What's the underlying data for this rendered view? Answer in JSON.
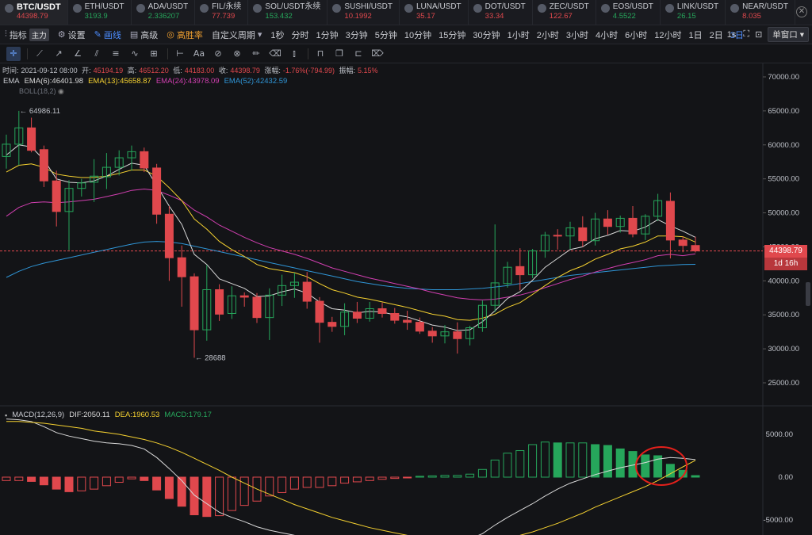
{
  "tickers": [
    {
      "symbol": "BTC/USDT",
      "price": "44398.79",
      "dir": "dn",
      "active": true
    },
    {
      "symbol": "ETH/USDT",
      "price": "3193.9",
      "dir": "up"
    },
    {
      "symbol": "ADA/USDT",
      "price": "2.336207",
      "dir": "up"
    },
    {
      "symbol": "FIL/永续",
      "price": "77.739",
      "dir": "dn"
    },
    {
      "symbol": "SOL/USDT永续",
      "price": "153.432",
      "dir": "up"
    },
    {
      "symbol": "SUSHI/USDT",
      "price": "10.1992",
      "dir": "dn"
    },
    {
      "symbol": "LUNA/USDT",
      "price": "35.17",
      "dir": "dn"
    },
    {
      "symbol": "DOT/USDT",
      "price": "33.34",
      "dir": "dn"
    },
    {
      "symbol": "ZEC/USDT",
      "price": "122.67",
      "dir": "dn"
    },
    {
      "symbol": "EOS/USDT",
      "price": "4.5522",
      "dir": "up"
    },
    {
      "symbol": "LINK/USDT",
      "price": "26.15",
      "dir": "up"
    },
    {
      "symbol": "NEAR/USDT",
      "price": "8.035",
      "dir": "dn"
    }
  ],
  "menu": {
    "indicators": "指标",
    "main_badge": "主力",
    "settings": "设置",
    "draw": "画线",
    "advanced": "高级",
    "winrate": "高胜率",
    "custom_period": "自定义周期",
    "intervals": [
      "1秒",
      "分时",
      "1分钟",
      "3分钟",
      "5分钟",
      "10分钟",
      "15分钟",
      "30分钟",
      "1小时",
      "2小时",
      "3小时",
      "4小时",
      "6小时",
      "12小时",
      "1日",
      "2日",
      "3日"
    ],
    "selected_interval": "3日",
    "right_interval": "1s",
    "single_window": "单窗口"
  },
  "tool_icons": [
    "crosshair-icon",
    "trendline-icon",
    "ray-icon",
    "angle-icon",
    "channel-icon",
    "parallel-icon",
    "wave-icon",
    "add-box-icon",
    "ruler-icon",
    "text-icon",
    "magnet-icon",
    "lock-draw-icon",
    "brush-icon",
    "eraser-icon",
    "candle-type-icon",
    "lock-icon",
    "copy-icon",
    "cut-icon",
    "trash-icon"
  ],
  "ohlc": {
    "time_label": "时间:",
    "time": "2021-09-12 08:00",
    "open_label": "开:",
    "open": "45194.19",
    "high_label": "高:",
    "high": "46512.20",
    "low_label": "低:",
    "low": "44183.00",
    "close_label": "收:",
    "close": "44398.79",
    "change_label": "涨幅:",
    "change": "-1.76%(-794.99)",
    "amp_label": "振幅:",
    "amp": "5.15%"
  },
  "ema": {
    "name": "EMA",
    "ema6": "EMA(6):46401.98",
    "ema13": "EMA(13):45658.87",
    "ema24": "EMA(24):43978.09",
    "ema52": "EMA(52):42432.59",
    "boll": "BOLL(18,2)"
  },
  "macd": {
    "name": "MACD(12,26,9)",
    "dif": "DIF:2050.11",
    "dea": "DEA:1960.53",
    "macd": "MACD:179.17"
  },
  "colors": {
    "up": "#26a65b",
    "down": "#e0484d",
    "ema6": "#d9d9d9",
    "ema13": "#f5d130",
    "ema24": "#d13fb0",
    "ema52": "#2f95d6",
    "dif": "#d9d9d9",
    "dea": "#f5d130"
  },
  "price_axis": {
    "ticks": [
      "70000.00",
      "65000.00",
      "60000.00",
      "55000.00",
      "50000.00",
      "45000.00",
      "40000.00",
      "35000.00",
      "30000.00",
      "25000.00"
    ],
    "current": "44398.79",
    "countdown": "1d 16h"
  },
  "macd_axis": {
    "ticks": [
      "5000.00",
      "0.00",
      "-5000.00"
    ]
  },
  "annotations": {
    "high": "64986.11",
    "low": "28688"
  },
  "chart_data": {
    "type": "candlestick",
    "candles": [
      [
        58300,
        61500,
        56500,
        60100
      ],
      [
        60100,
        65000,
        57000,
        62500
      ],
      [
        62500,
        64000,
        58900,
        59200
      ],
      [
        59300,
        59900,
        53800,
        54700
      ],
      [
        54700,
        56200,
        48000,
        50200
      ],
      [
        50200,
        54800,
        44500,
        53600
      ],
      [
        53600,
        55000,
        52400,
        54400
      ],
      [
        54500,
        57900,
        51600,
        55400
      ],
      [
        55300,
        58800,
        53500,
        56700
      ],
      [
        56700,
        59200,
        55500,
        58100
      ],
      [
        58100,
        59900,
        56200,
        59000
      ],
      [
        59000,
        59600,
        56000,
        56600
      ],
      [
        56600,
        57200,
        48400,
        49800
      ],
      [
        49800,
        51000,
        40000,
        43400
      ],
      [
        43400,
        45200,
        36200,
        40600
      ],
      [
        40600,
        41100,
        28688,
        32800
      ],
      [
        32800,
        42300,
        31200,
        38700
      ],
      [
        38700,
        39500,
        34100,
        35100
      ],
      [
        35200,
        39200,
        34400,
        37800
      ],
      [
        37800,
        38300,
        36200,
        37600
      ],
      [
        37600,
        38200,
        33800,
        34600
      ],
      [
        34600,
        38900,
        31300,
        37900
      ],
      [
        37900,
        40900,
        36300,
        39300
      ],
      [
        39300,
        41200,
        37500,
        39800
      ],
      [
        39800,
        41300,
        35900,
        37000
      ],
      [
        37000,
        37600,
        30900,
        33900
      ],
      [
        33900,
        34700,
        32500,
        33300
      ],
      [
        33300,
        36700,
        32000,
        35400
      ],
      [
        35400,
        36900,
        33800,
        34500
      ],
      [
        34500,
        36900,
        34000,
        35900
      ],
      [
        35900,
        36800,
        34600,
        35200
      ],
      [
        35200,
        36000,
        33700,
        34200
      ],
      [
        34200,
        35600,
        32800,
        33900
      ],
      [
        33900,
        34600,
        32200,
        32600
      ],
      [
        32600,
        33200,
        30900,
        31900
      ],
      [
        31900,
        33500,
        30800,
        32500
      ],
      [
        32500,
        33900,
        29300,
        31500
      ],
      [
        31500,
        33400,
        30500,
        33100
      ],
      [
        33100,
        37100,
        32500,
        36400
      ],
      [
        36400,
        48300,
        35400,
        39700
      ],
      [
        39600,
        42800,
        39000,
        42000
      ],
      [
        42100,
        44800,
        38600,
        40900
      ],
      [
        40900,
        44700,
        40400,
        44400
      ],
      [
        44400,
        47200,
        43400,
        46700
      ],
      [
        46700,
        47600,
        44600,
        46600
      ],
      [
        46600,
        48700,
        44700,
        47800
      ],
      [
        47800,
        49500,
        45000,
        45900
      ],
      [
        45900,
        50000,
        45200,
        49100
      ],
      [
        49100,
        50400,
        46800,
        48000
      ],
      [
        48000,
        49600,
        47100,
        49200
      ],
      [
        49200,
        51000,
        46400,
        46900
      ],
      [
        46900,
        49800,
        46000,
        49500
      ],
      [
        49500,
        52800,
        48800,
        51800
      ],
      [
        51700,
        53000,
        43300,
        46000
      ],
      [
        46000,
        46500,
        44200,
        45200
      ],
      [
        45200,
        46500,
        44180,
        44400
      ]
    ],
    "ema6": [
      58500,
      60000,
      59700,
      57800,
      55000,
      54500,
      54400,
      54700,
      55400,
      56400,
      57300,
      57000,
      54000,
      51000,
      48300,
      43900,
      42400,
      40300,
      39600,
      38900,
      37700,
      37800,
      38400,
      38800,
      38200,
      36900,
      35900,
      35700,
      35300,
      35500,
      35400,
      35000,
      34700,
      34100,
      33500,
      33200,
      32700,
      32800,
      34000,
      35600,
      37400,
      38400,
      40100,
      42000,
      43300,
      44600,
      45000,
      46200,
      46700,
      47400,
      47300,
      47900,
      49000,
      48100,
      47300,
      46400
    ],
    "ema13": [
      56000,
      57000,
      57200,
      56700,
      55700,
      55400,
      55200,
      55200,
      55400,
      55800,
      56300,
      56300,
      55400,
      53700,
      51800,
      49100,
      47600,
      45800,
      44600,
      43600,
      42400,
      41800,
      41500,
      41200,
      40600,
      39600,
      38700,
      38200,
      37600,
      37300,
      36900,
      36500,
      36100,
      35600,
      35100,
      34800,
      34300,
      34200,
      34500,
      35100,
      36100,
      36800,
      38000,
      39300,
      40500,
      41500,
      42200,
      43200,
      43900,
      44700,
      45100,
      45700,
      46600,
      46600,
      46500,
      45700
    ],
    "ema24": [
      49500,
      50800,
      51500,
      51600,
      51500,
      51600,
      51800,
      52000,
      52400,
      52800,
      53300,
      53500,
      53300,
      52600,
      51800,
      50400,
      49400,
      48200,
      47300,
      46400,
      45600,
      44900,
      44400,
      43900,
      43300,
      42600,
      41900,
      41400,
      40900,
      40400,
      40000,
      39600,
      39200,
      38800,
      38300,
      37900,
      37500,
      37300,
      37200,
      37300,
      37600,
      37900,
      38400,
      39000,
      39600,
      40200,
      40700,
      41300,
      41800,
      42300,
      42700,
      43100,
      43700,
      43900,
      43700,
      43978
    ],
    "ema52": [
      40500,
      41400,
      42100,
      42600,
      43000,
      43400,
      43800,
      44200,
      44600,
      45000,
      45400,
      45700,
      45800,
      45700,
      45500,
      45100,
      44700,
      44300,
      43900,
      43500,
      43100,
      42700,
      42300,
      41900,
      41500,
      41100,
      40700,
      40300,
      39900,
      39600,
      39300,
      39100,
      38900,
      38800,
      38700,
      38700,
      38700,
      38800,
      38900,
      39100,
      39300,
      39600,
      39900,
      40200,
      40500,
      40800,
      41000,
      41200,
      41400,
      41600,
      41800,
      42000,
      42200,
      42300,
      42400,
      42432
    ],
    "macd_hist": [
      -400,
      -400,
      -500,
      -900,
      -1400,
      -1700,
      -1600,
      -1400,
      -1000,
      -600,
      -200,
      -400,
      -1500,
      -2500,
      -3400,
      -4400,
      -4600,
      -4500,
      -3900,
      -3300,
      -2800,
      -2200,
      -1800,
      -1400,
      -1200,
      -1200,
      -1000,
      -700,
      -550,
      -400,
      -250,
      -150,
      -50,
      100,
      150,
      200,
      200,
      350,
      900,
      2000,
      2800,
      3100,
      3800,
      4100,
      4000,
      4000,
      4000,
      3800,
      3700,
      3300,
      3000,
      2600,
      2500,
      1500,
      800,
      179
    ],
    "dif": [
      6800,
      6700,
      6500,
      5900,
      5200,
      4800,
      4500,
      4200,
      4000,
      3900,
      3700,
      3300,
      2300,
      1000,
      -400,
      -2100,
      -3100,
      -4100,
      -4700,
      -5200,
      -5800,
      -6200,
      -6500,
      -6800,
      -7000,
      -7200,
      -7300,
      -7400,
      -7500,
      -7500,
      -7500,
      -7500,
      -7500,
      -7500,
      -7500,
      -7500,
      -7400,
      -7200,
      -6600,
      -5600,
      -4700,
      -3900,
      -3100,
      -2200,
      -1400,
      -700,
      -200,
      300,
      700,
      1100,
      1400,
      1700,
      2100,
      2300,
      2200,
      2050
    ],
    "dea": [
      6500,
      6500,
      6400,
      6300,
      6100,
      5900,
      5700,
      5400,
      5200,
      5000,
      4700,
      4400,
      4000,
      3500,
      2900,
      2200,
      1500,
      800,
      0,
      -700,
      -1400,
      -2000,
      -2600,
      -3200,
      -3700,
      -4200,
      -4700,
      -5100,
      -5500,
      -5900,
      -6200,
      -6500,
      -6800,
      -7000,
      -7200,
      -7300,
      -7400,
      -7500,
      -7400,
      -7300,
      -7100,
      -6800,
      -6400,
      -5900,
      -5400,
      -4800,
      -4200,
      -3500,
      -2900,
      -2300,
      -1700,
      -1100,
      -400,
      400,
      1200,
      1960
    ],
    "ylim_price": [
      20000,
      73500
    ],
    "ylim_macd": [
      -6800,
      6800
    ]
  }
}
